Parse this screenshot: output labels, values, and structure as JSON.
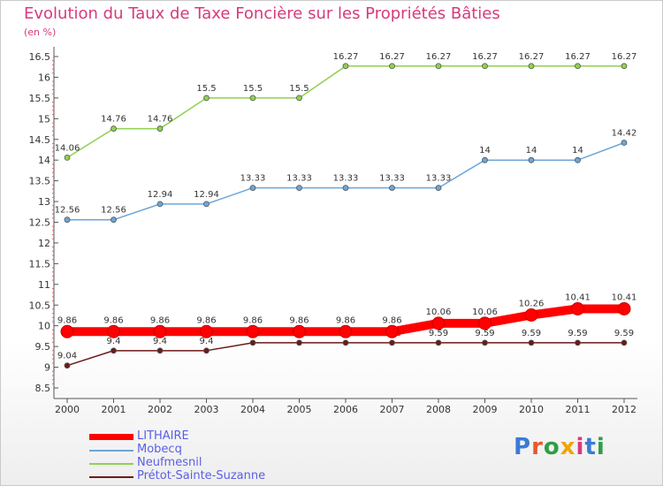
{
  "header": {
    "title": "Evolution du Taux de Taxe Foncière sur les Propriétés Bâties",
    "unit": "(en %)"
  },
  "logo": {
    "text": "Proxiti",
    "colors": [
      "#3a7bd5",
      "#e8582b",
      "#2f9e44",
      "#f0a500",
      "#d63a7d",
      "#3a7bd5",
      "#2f9e44"
    ]
  },
  "chart_data": {
    "type": "line",
    "title": "Evolution du Taux de Taxe Foncière sur les Propriétés Bâties",
    "ylabel": "(en %)",
    "xlabel": "",
    "categories": [
      "2000",
      "2001",
      "2002",
      "2003",
      "2004",
      "2005",
      "2006",
      "2007",
      "2008",
      "2009",
      "2010",
      "2011",
      "2012"
    ],
    "ylim": [
      8.5,
      16.5
    ],
    "yticks": [
      "8.5",
      "9",
      "9.5",
      "10",
      "10.5",
      "11",
      "11.5",
      "12",
      "12.5",
      "13",
      "13.5",
      "14",
      "14.5",
      "15",
      "15.5",
      "16",
      "16.5"
    ],
    "grid": false,
    "legend_position": "bottom-left",
    "series": [
      {
        "name": "Neufmesnil",
        "color": "#8fd14f",
        "values": [
          14.06,
          14.76,
          14.76,
          15.5,
          15.5,
          15.5,
          16.27,
          16.27,
          16.27,
          16.27,
          16.27,
          16.27,
          16.27
        ],
        "labels": [
          "14.06",
          "14.76",
          "14.76",
          "15.5",
          "15.5",
          "15.5",
          "16.27",
          "16.27",
          "16.27",
          "16.27",
          "16.27",
          "16.27",
          "16.27"
        ]
      },
      {
        "name": "Mobecq",
        "color": "#6ca6d8",
        "values": [
          12.56,
          12.56,
          12.94,
          12.94,
          13.33,
          13.33,
          13.33,
          13.33,
          13.33,
          14,
          14,
          14,
          14.42
        ],
        "labels": [
          "12.56",
          "12.56",
          "12.94",
          "12.94",
          "13.33",
          "13.33",
          "13.33",
          "13.33",
          "13.33",
          "14",
          "14",
          "14",
          "14.42"
        ]
      },
      {
        "name": "Prétot-Sainte-Suzanne",
        "color": "#6b1a1a",
        "values": [
          9.04,
          9.4,
          9.4,
          9.4,
          9.59,
          9.59,
          9.59,
          9.59,
          9.59,
          9.59,
          9.59,
          9.59,
          9.59
        ],
        "labels": [
          "9.04",
          "9.4",
          "9.4",
          "9.4",
          "9.59",
          "9.59",
          "9.59",
          "9.59",
          "9.59",
          "9.59",
          "9.59",
          "9.59",
          "9.59"
        ]
      },
      {
        "name": "LITHAIRE",
        "color": "#ff0000",
        "values": [
          9.86,
          9.86,
          9.86,
          9.86,
          9.86,
          9.86,
          9.86,
          9.86,
          10.06,
          10.06,
          10.26,
          10.41,
          10.41
        ],
        "labels": [
          "9.86",
          "9.86",
          "9.86",
          "9.86",
          "9.86",
          "9.86",
          "9.86",
          "9.86",
          "10.06",
          "10.06",
          "10.26",
          "10.41",
          "10.41"
        ]
      }
    ],
    "legend": [
      "LITHAIRE",
      "Mobecq",
      "Neufmesnil",
      "Prétot-Sainte-Suzanne"
    ]
  }
}
